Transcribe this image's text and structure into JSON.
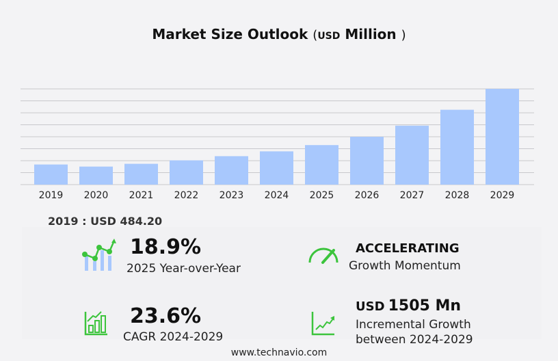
{
  "title": {
    "main": "Market Size Outlook",
    "open": "(",
    "unit": "USD",
    "unit2": "Million",
    "close": ")"
  },
  "chart_data": {
    "type": "bar",
    "categories": [
      "2019",
      "2020",
      "2021",
      "2022",
      "2023",
      "2024",
      "2025",
      "2026",
      "2027",
      "2028",
      "2029"
    ],
    "values": [
      484.2,
      434,
      501,
      584,
      685,
      801,
      952,
      1152,
      1420,
      1803,
      2306
    ],
    "ylim": [
      0,
      2306
    ],
    "grid": true,
    "color": "#a8c8fd"
  },
  "base_label": "2019 : USD  484.20",
  "kpis": {
    "yoy": {
      "value": "18.9%",
      "label": "2025 Year-over-Year"
    },
    "momentum": {
      "value": "ACCELERATING",
      "label": "Growth Momentum"
    },
    "cagr": {
      "value": "23.6%",
      "label": "CAGR 2024-2029"
    },
    "incremental": {
      "unit": "USD",
      "value": "1505 Mn",
      "label1": "Incremental Growth",
      "label2": "between 2024-2029"
    }
  },
  "colors": {
    "green": "#3cc43c",
    "bar": "#a8c8fd"
  },
  "footer": "www.technavio.com"
}
